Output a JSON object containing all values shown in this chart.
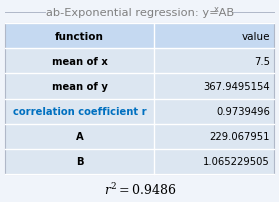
{
  "title_main": "ab-Exponential regression: y=AB",
  "title_sup": "x",
  "headers": [
    "function",
    "value"
  ],
  "rows": [
    [
      "mean of x",
      "7.5"
    ],
    [
      "mean of y",
      "367.9495154"
    ],
    [
      "correlation coefficient r",
      "0.9739496"
    ],
    [
      "A",
      "229.067951"
    ],
    [
      "B",
      "1.065229505"
    ]
  ],
  "header_bg": "#c5d9f1",
  "row_bg": "#dce6f1",
  "value_col_bg": "#daeef3",
  "blue_row_index": 2,
  "blue_text_color": "#0070c0",
  "normal_text_color": "#000000",
  "title_color": "#808080",
  "footer_text": "$r^2 = 0.9486$",
  "bg_color": "#f0f4fa",
  "border_color": "#b0b8c8",
  "col_split": 0.555
}
